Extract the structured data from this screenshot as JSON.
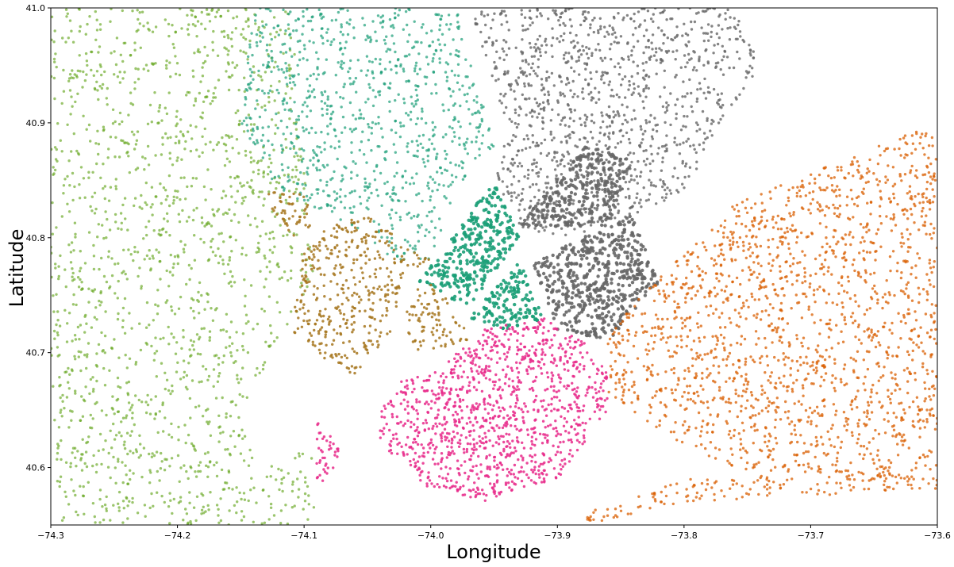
{
  "chart_data": {
    "type": "scatter",
    "xlabel": "Longitude",
    "ylabel": "Latitude",
    "xlim": [
      -74.3,
      -73.6
    ],
    "ylim": [
      40.55,
      41.0
    ],
    "xticks": [
      -74.3,
      -74.2,
      -74.1,
      -74.0,
      -73.9,
      -73.8,
      -73.7,
      -73.6
    ],
    "yticks": [
      40.6,
      40.7,
      40.8,
      40.9,
      41.0
    ],
    "xtick_labels": [
      "−74.3",
      "−74.2",
      "−74.1",
      "−74.0",
      "−73.9",
      "−73.8",
      "−73.7",
      "−73.6"
    ],
    "ytick_labels": [
      "40.6",
      "40.7",
      "40.8",
      "40.9",
      "41.0"
    ],
    "grid": false,
    "legend": "none",
    "series": [
      {
        "color": "#66a61e",
        "density": 0.8,
        "opacity": 0.65,
        "regions": [
          [
            [
              -74.3,
              41.0
            ],
            [
              -74.11,
              41.0
            ],
            [
              -74.1,
              40.86
            ],
            [
              -74.09,
              40.76
            ],
            [
              -74.12,
              40.71
            ],
            [
              -74.15,
              40.64
            ],
            [
              -74.13,
              40.6
            ],
            [
              -74.09,
              40.62
            ],
            [
              -74.09,
              40.55
            ],
            [
              -74.3,
              40.55
            ]
          ]
        ]
      },
      {
        "color": "#1b9e77",
        "density": 1.2,
        "opacity": 0.7,
        "regions": [
          [
            [
              -74.14,
              41.0
            ],
            [
              -73.98,
              41.0
            ],
            [
              -73.96,
              40.92
            ],
            [
              -73.95,
              40.88
            ],
            [
              -73.98,
              40.84
            ],
            [
              -74.0,
              40.78
            ],
            [
              -74.02,
              40.77
            ],
            [
              -74.05,
              40.8
            ],
            [
              -74.08,
              40.82
            ],
            [
              -74.12,
              40.84
            ],
            [
              -74.15,
              40.9
            ]
          ]
        ],
        "dense": [
          [
            [
              -74.01,
              40.76
            ],
            [
              -73.95,
              40.85
            ],
            [
              -73.93,
              40.8
            ],
            [
              -73.97,
              40.74
            ]
          ],
          [
            [
              -73.97,
              40.73
            ],
            [
              -73.93,
              40.78
            ],
            [
              -73.91,
              40.73
            ],
            [
              -73.94,
              40.72
            ]
          ]
        ]
      },
      {
        "color": "#666666",
        "density": 1.5,
        "opacity": 0.8,
        "regions": [
          [
            [
              -73.97,
              41.0
            ],
            [
              -73.76,
              41.0
            ],
            [
              -73.74,
              40.95
            ],
            [
              -73.78,
              40.88
            ],
            [
              -73.8,
              40.84
            ],
            [
              -73.86,
              40.81
            ],
            [
              -73.9,
              40.8
            ],
            [
              -73.93,
              40.81
            ],
            [
              -73.95,
              40.85
            ],
            [
              -73.94,
              40.9
            ]
          ]
        ],
        "dense": [
          [
            [
              -73.92,
              40.78
            ],
            [
              -73.84,
              40.82
            ],
            [
              -73.82,
              40.76
            ],
            [
              -73.86,
              40.71
            ],
            [
              -73.9,
              40.72
            ]
          ],
          [
            [
              -73.93,
              40.81
            ],
            [
              -73.88,
              40.88
            ],
            [
              -73.84,
              40.87
            ],
            [
              -73.86,
              40.81
            ]
          ]
        ]
      },
      {
        "color": "#d95f02",
        "density": 1.3,
        "opacity": 0.75,
        "regions": [
          [
            [
              -73.86,
              40.72
            ],
            [
              -73.76,
              40.83
            ],
            [
              -73.6,
              40.9
            ],
            [
              -73.6,
              40.58
            ],
            [
              -73.74,
              40.59
            ],
            [
              -73.8,
              40.62
            ],
            [
              -73.86,
              40.66
            ]
          ],
          [
            [
              -73.88,
              40.56
            ],
            [
              -73.8,
              40.59
            ],
            [
              -73.7,
              40.59
            ],
            [
              -73.62,
              40.6
            ],
            [
              -73.62,
              40.58
            ],
            [
              -73.8,
              40.57
            ],
            [
              -73.88,
              40.55
            ]
          ]
        ]
      },
      {
        "color": "#e7298a",
        "density": 2.4,
        "opacity": 0.85,
        "regions": [
          [
            [
              -74.0,
              40.68
            ],
            [
              -73.96,
              40.72
            ],
            [
              -73.91,
              40.73
            ],
            [
              -73.88,
              40.71
            ],
            [
              -73.86,
              40.69
            ],
            [
              -73.86,
              40.65
            ],
            [
              -73.9,
              40.59
            ],
            [
              -73.96,
              40.57
            ],
            [
              -74.0,
              40.58
            ],
            [
              -74.04,
              40.62
            ],
            [
              -74.04,
              40.65
            ],
            [
              -74.02,
              40.68
            ]
          ],
          [
            [
              -74.09,
              40.64
            ],
            [
              -74.07,
              40.62
            ],
            [
              -74.08,
              40.59
            ],
            [
              -74.09,
              40.58
            ]
          ]
        ]
      },
      {
        "color": "#a6761d",
        "density": 1.8,
        "opacity": 0.85,
        "regions": [
          [
            [
              -74.02,
              40.77
            ],
            [
              -74.0,
              40.78
            ],
            [
              -74.05,
              40.82
            ],
            [
              -74.08,
              40.81
            ],
            [
              -74.1,
              40.79
            ],
            [
              -74.11,
              40.72
            ],
            [
              -74.08,
              40.69
            ],
            [
              -74.06,
              40.68
            ],
            [
              -74.03,
              40.72
            ]
          ],
          [
            [
              -74.0,
              40.76
            ],
            [
              -73.98,
              40.74
            ],
            [
              -73.97,
              40.71
            ],
            [
              -74.01,
              40.7
            ],
            [
              -74.02,
              40.72
            ],
            [
              -74.02,
              40.75
            ]
          ],
          [
            [
              -74.13,
              40.84
            ],
            [
              -74.1,
              40.84
            ],
            [
              -74.09,
              40.8
            ],
            [
              -74.12,
              40.8
            ]
          ]
        ]
      }
    ]
  }
}
